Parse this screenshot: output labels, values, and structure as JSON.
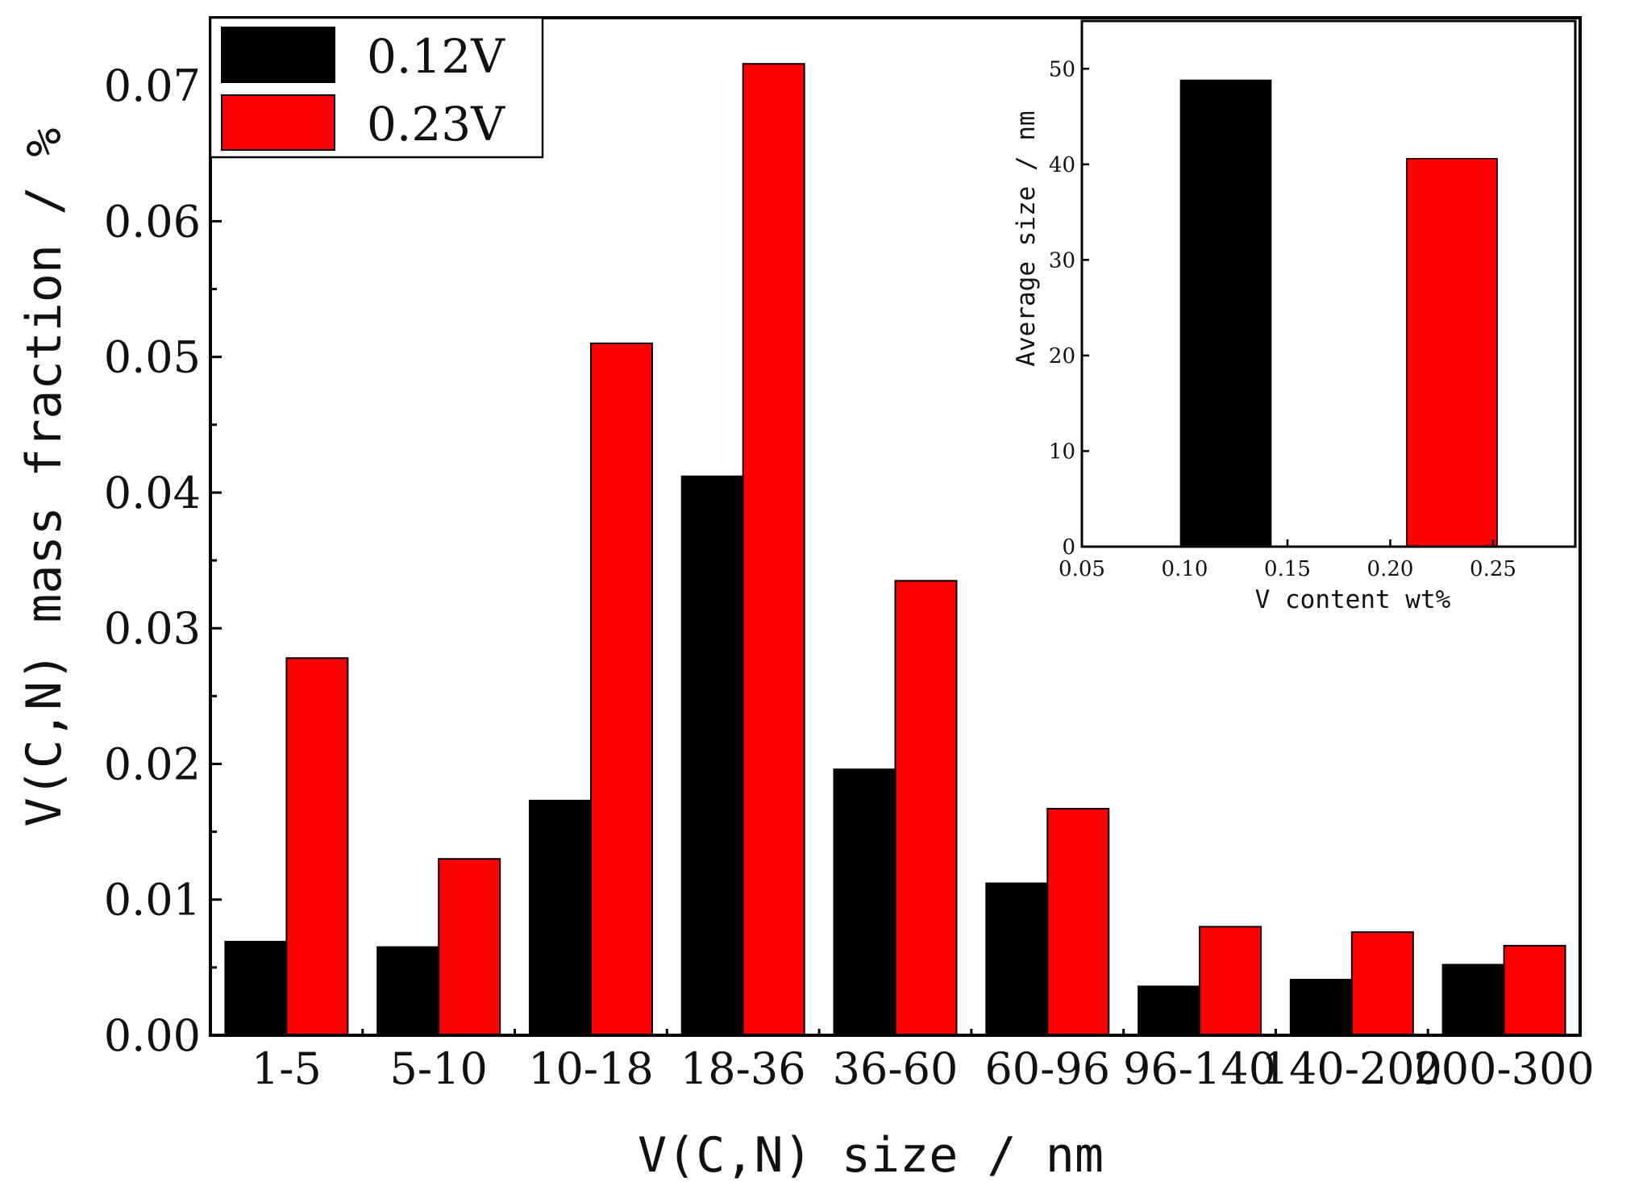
{
  "chart_data": [
    {
      "type": "bar",
      "xlabel": "V(C,N) size / nm",
      "ylabel": "V(C,N) mass fraction / %",
      "ylim": [
        0,
        0.075
      ],
      "yticks": [
        "0.00",
        "0.01",
        "0.02",
        "0.03",
        "0.04",
        "0.05",
        "0.06",
        "0.07"
      ],
      "categories": [
        "1-5",
        "5-10",
        "10-18",
        "18-36",
        "36-60",
        "60-96",
        "96-140",
        "140-200",
        "200-300"
      ],
      "series": [
        {
          "name": "0.12V",
          "color": "#000000",
          "values": [
            0.0069,
            0.0065,
            0.0173,
            0.0412,
            0.0196,
            0.0112,
            0.0036,
            0.0041,
            0.0052
          ]
        },
        {
          "name": "0.23V",
          "color": "#ff0000",
          "values": [
            0.0278,
            0.013,
            0.051,
            0.0716,
            0.0335,
            0.0167,
            0.008,
            0.0076,
            0.0066
          ]
        }
      ],
      "legend": "top-left",
      "grid": false
    },
    {
      "type": "bar",
      "inset": true,
      "xlabel": "V content wt%",
      "ylabel": "Average size / nm",
      "xlim": [
        0.05,
        0.29
      ],
      "ylim": [
        0,
        55
      ],
      "xticks": [
        "0.05",
        "0.10",
        "0.15",
        "0.20",
        "0.25"
      ],
      "yticks": [
        "0",
        "10",
        "20",
        "30",
        "40",
        "50"
      ],
      "points": [
        {
          "x": 0.12,
          "value": 48.8,
          "color": "#000000"
        },
        {
          "x": 0.23,
          "value": 40.6,
          "color": "#ff0000"
        }
      ],
      "bar_width": 0.044,
      "grid": false
    }
  ]
}
